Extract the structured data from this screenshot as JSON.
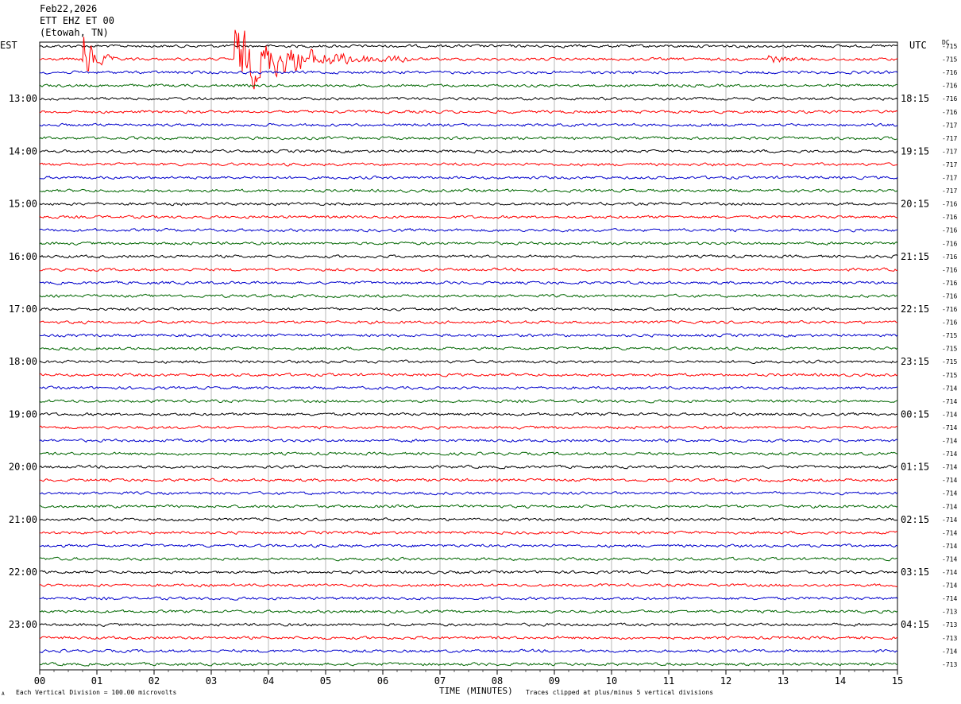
{
  "header": {
    "date": "Feb22,2026",
    "station": "ETT EHZ ET 00",
    "location": "(Etowah, TN)"
  },
  "left_timezone": "EST",
  "right_timezone": "UTC",
  "dc_label": "DC",
  "footer": {
    "scale_note": "Each Vertical Division = 100.00 microvolts",
    "clip_note": "Traces clipped at plus/minus 5 vertical divisions",
    "corner_mark": "A"
  },
  "chart_data": {
    "type": "line",
    "title": "",
    "xlabel": "TIME (MINUTES)",
    "xlim": [
      0,
      15
    ],
    "xticks": [
      "00",
      "01",
      "02",
      "03",
      "04",
      "05",
      "06",
      "07",
      "08",
      "09",
      "10",
      "11",
      "12",
      "13",
      "14",
      "15"
    ],
    "trace_colors": [
      "#000000",
      "#ff0000",
      "#0000cc",
      "#006600"
    ],
    "trace_count": 48,
    "minutes_per_trace": 15,
    "left_hour_labels": [
      "13:00",
      "14:00",
      "15:00",
      "16:00",
      "17:00",
      "18:00",
      "19:00",
      "20:00",
      "21:00",
      "22:00",
      "23:00"
    ],
    "right_hour_labels": [
      "18:15",
      "19:15",
      "20:15",
      "21:15",
      "22:15",
      "23:15",
      "00:15",
      "01:15",
      "02:15",
      "03:15",
      "04:15"
    ],
    "dc_offsets": [
      -715,
      -715,
      -716,
      -716,
      -716,
      -716,
      -717,
      -717,
      -717,
      -717,
      -717,
      -717,
      -716,
      -716,
      -716,
      -716,
      -716,
      -716,
      -716,
      -716,
      -716,
      -716,
      -715,
      -715,
      -715,
      -715,
      -714,
      -714,
      -714,
      -714,
      -714,
      -714,
      -714,
      -714,
      -714,
      -714,
      -714,
      -714,
      -714,
      -714,
      -714,
      -714,
      -714,
      -713,
      -713,
      -713,
      -714,
      -713
    ],
    "events": [
      {
        "trace": 1,
        "start_min": 0.75,
        "end_min": 1.3,
        "label": ""
      },
      {
        "trace": 1,
        "start_min": 3.4,
        "end_min": 6.5,
        "label": ""
      },
      {
        "trace": 1,
        "start_min": 12.7,
        "end_min": 13.5,
        "label": ""
      }
    ]
  }
}
